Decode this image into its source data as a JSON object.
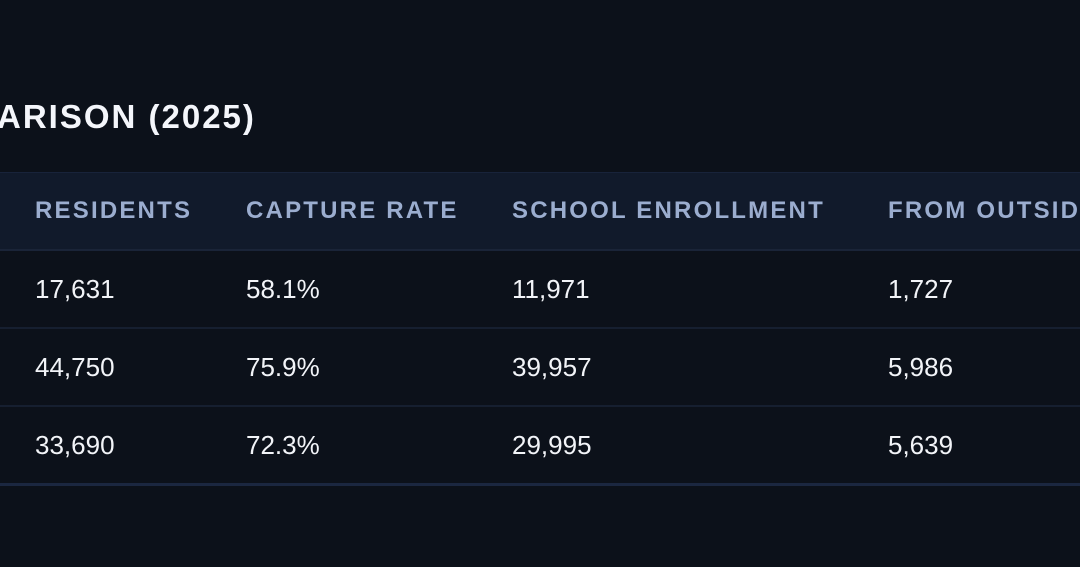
{
  "title": "ARISON (2025)",
  "table": {
    "columns": [
      "RESIDENTS",
      "CAPTURE RATE",
      "SCHOOL ENROLLMENT",
      "FROM OUTSIDE"
    ],
    "rows": [
      [
        "17,631",
        "58.1%",
        "11,971",
        "1,727"
      ],
      [
        "44,750",
        "75.9%",
        "39,957",
        "5,986"
      ],
      [
        "33,690",
        "72.3%",
        "29,995",
        "5,639"
      ]
    ]
  },
  "colors": {
    "background": "#0c111a",
    "header_background": "#111a2b",
    "header_text": "#9badcf",
    "text": "#f2f4f8"
  }
}
